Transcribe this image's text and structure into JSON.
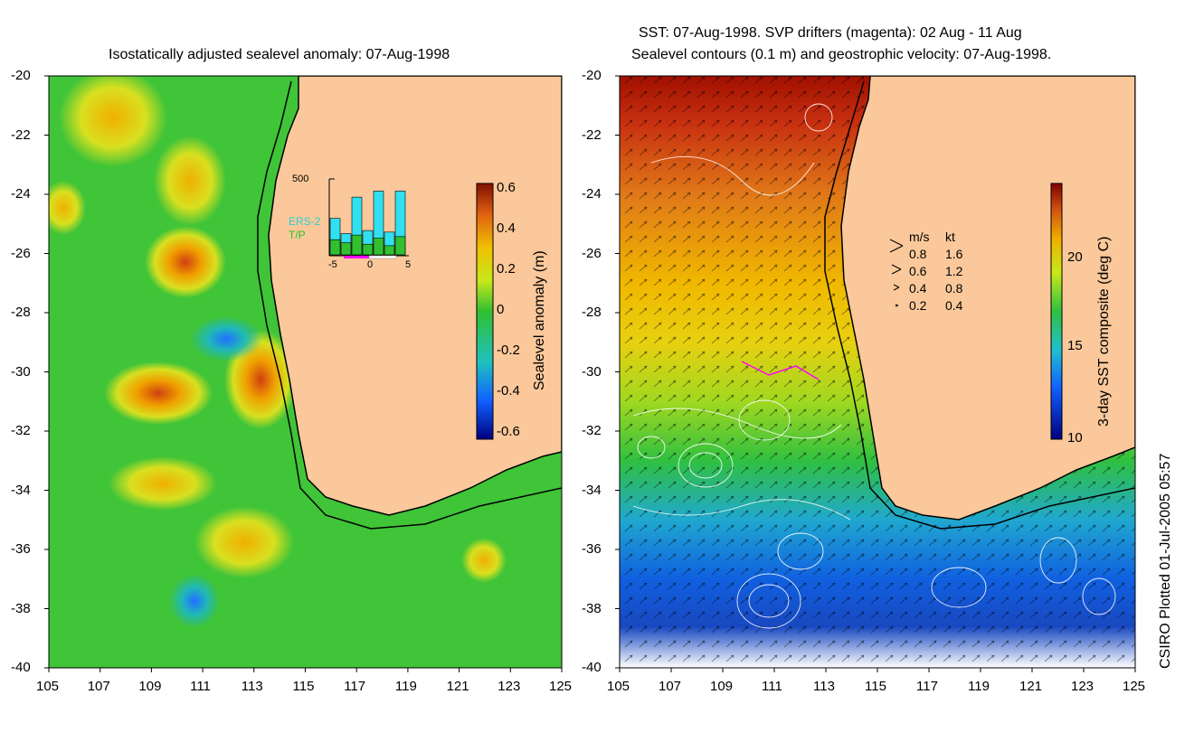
{
  "left_panel": {
    "title": "Isostatically adjusted sealevel anomaly: 07-Aug-1998",
    "colorbar_label": "Sealevel anomaly (m)",
    "colorbar_ticks": [
      "0.6",
      "0.4",
      "0.2",
      "0",
      "-0.2",
      "-0.4",
      "-0.6"
    ],
    "inset": {
      "ymax_label": "500",
      "legend": [
        "ERS-2",
        "T/P"
      ],
      "x_ticks": [
        "-5",
        "0",
        "5"
      ],
      "ers2_values": [
        240,
        140,
        380,
        160,
        420,
        150,
        420
      ],
      "tp_values": [
        100,
        80,
        130,
        70,
        110,
        60,
        120
      ],
      "ymax": 500
    }
  },
  "right_panel": {
    "title_line1": "SST: 07-Aug-1998. SVP drifters (magenta): 02 Aug - 11 Aug",
    "title_line2": "Sealevel contours (0.1 m) and geostrophic velocity: 07-Aug-1998.",
    "colorbar_label": "3-day SST composite (deg C)",
    "colorbar_ticks": [
      "20",
      "15",
      "10"
    ],
    "velocity_legend": {
      "header": [
        "m/s",
        "kt"
      ],
      "rows": [
        [
          "0.8",
          "1.6"
        ],
        [
          "0.6",
          "1.2"
        ],
        [
          "0.4",
          "0.8"
        ],
        [
          "0.2",
          "0.4"
        ]
      ]
    }
  },
  "axes": {
    "y_ticks": [
      "-20",
      "-22",
      "-24",
      "-26",
      "-28",
      "-30",
      "-32",
      "-34",
      "-36",
      "-38",
      "-40"
    ],
    "x_ticks": [
      "105",
      "107",
      "109",
      "111",
      "113",
      "115",
      "117",
      "119",
      "121",
      "123",
      "125"
    ],
    "lon_range": [
      105,
      125
    ],
    "lat_range": [
      -20,
      -40
    ]
  },
  "colors": {
    "land": "#fac89a",
    "coast": "#000000",
    "ocean_green": "#3ec63a"
  },
  "credit": "CSIRO Plotted 01-Jul-2005 05:57"
}
